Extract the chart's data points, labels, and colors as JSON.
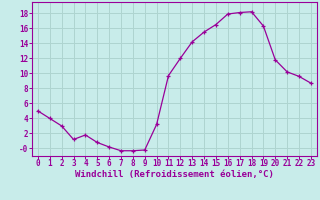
{
  "x": [
    0,
    1,
    2,
    3,
    4,
    5,
    6,
    7,
    8,
    9,
    10,
    11,
    12,
    13,
    14,
    15,
    16,
    17,
    18,
    19,
    20,
    21,
    22,
    23
  ],
  "y": [
    5.0,
    4.0,
    3.0,
    1.2,
    1.8,
    0.8,
    0.2,
    -0.3,
    -0.3,
    -0.2,
    3.2,
    9.7,
    12.0,
    14.2,
    15.5,
    16.5,
    17.9,
    18.1,
    18.2,
    16.3,
    11.8,
    10.2,
    9.6,
    8.7
  ],
  "xlabel": "Windchill (Refroidissement éolien,°C)",
  "ylim": [
    -1.0,
    19.5
  ],
  "xlim": [
    -0.5,
    23.5
  ],
  "yticks": [
    0,
    2,
    4,
    6,
    8,
    10,
    12,
    14,
    16,
    18
  ],
  "ytick_labels": [
    "-0",
    "2",
    "4",
    "6",
    "8",
    "10",
    "12",
    "14",
    "16",
    "18"
  ],
  "xticks": [
    0,
    1,
    2,
    3,
    4,
    5,
    6,
    7,
    8,
    9,
    10,
    11,
    12,
    13,
    14,
    15,
    16,
    17,
    18,
    19,
    20,
    21,
    22,
    23
  ],
  "line_color": "#990099",
  "marker": "+",
  "bg_color": "#c8ecea",
  "grid_color": "#aed4d0",
  "axis_color": "#990099",
  "font_color": "#990099",
  "font_size_ticks": 5.5,
  "font_size_xlabel": 6.5
}
